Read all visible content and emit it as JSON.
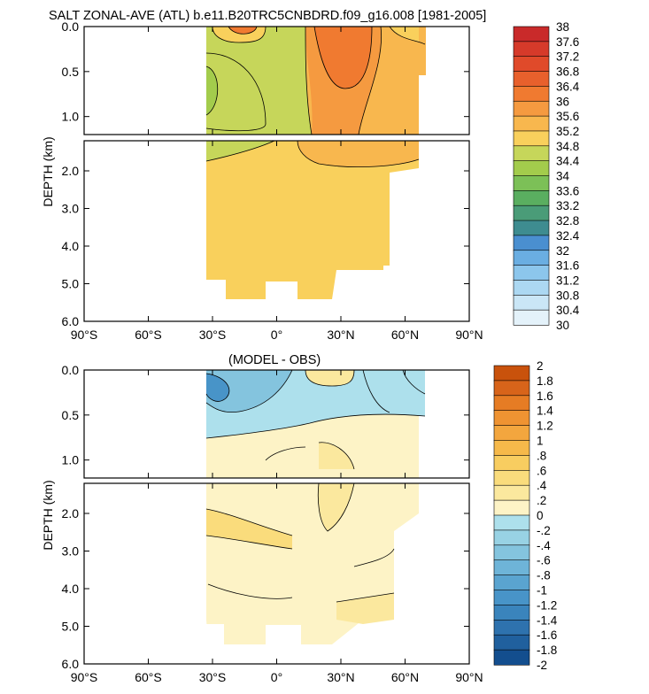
{
  "chart_data": [
    {
      "type": "heatmap",
      "title": "SALT ZONAL-AVE (ATL) b.e11.B20TRC5CNBDRD.f09_g16.008 [1981-2005]",
      "xlabel": "",
      "ylabel": "DEPTH (km)",
      "xlim": [
        -90,
        90
      ],
      "x_ticks": [
        -90,
        -60,
        -30,
        0,
        30,
        60,
        90
      ],
      "x_tick_labels": [
        "90°S",
        "60°S",
        "30°S",
        "0°",
        "30°N",
        "60°N",
        "90°N"
      ],
      "upper_ylim": [
        0.0,
        1.2
      ],
      "upper_y_tick_labels": [
        "0.0",
        "0.5",
        "1.0"
      ],
      "lower_ylim": [
        1.2,
        6.0
      ],
      "lower_y_tick_labels": [
        "2.0",
        "3.0",
        "4.0",
        "5.0",
        "6.0"
      ],
      "data_lat_range": [
        -34,
        66
      ],
      "colorbar_levels": [
        "38",
        "37.6",
        "37.2",
        "36.8",
        "36.4",
        "36",
        "35.6",
        "35.2",
        "34.8",
        "34.4",
        "34",
        "33.6",
        "33.2",
        "32.8",
        "32.4",
        "32",
        "31.6",
        "31.2",
        "30.8",
        "30.4",
        "30"
      ],
      "colorbar_colors": [
        "#c92a2a",
        "#d63a2a",
        "#e04a2a",
        "#e8602c",
        "#f07a30",
        "#f59a40",
        "#f8b74e",
        "#f9d05c",
        "#c6d65a",
        "#a3cc4c",
        "#7cc057",
        "#5aae60",
        "#4a9c78",
        "#3e8c90",
        "#4a8fd0",
        "#6aaee2",
        "#8cc6ec",
        "#acd8f2",
        "#cae6f6",
        "#e4f2fa"
      ]
    },
    {
      "type": "heatmap",
      "title": "(MODEL - OBS)",
      "xlabel": "",
      "ylabel": "DEPTH (km)",
      "xlim": [
        -90,
        90
      ],
      "x_ticks": [
        -90,
        -60,
        -30,
        0,
        30,
        60,
        90
      ],
      "x_tick_labels": [
        "90°S",
        "60°S",
        "30°S",
        "0°",
        "30°N",
        "60°N",
        "90°N"
      ],
      "upper_ylim": [
        0.0,
        1.2
      ],
      "upper_y_tick_labels": [
        "0.0",
        "0.5",
        "1.0"
      ],
      "lower_ylim": [
        1.2,
        6.0
      ],
      "lower_y_tick_labels": [
        "2.0",
        "3.0",
        "4.0",
        "5.0",
        "6.0"
      ],
      "data_lat_range": [
        -34,
        66
      ],
      "colorbar_levels": [
        "2",
        "1.8",
        "1.6",
        "1.4",
        "1.2",
        "1",
        ".8",
        ".6",
        ".4",
        ".2",
        "0",
        "-.2",
        "-.4",
        "-.6",
        "-.8",
        "-1",
        "-1.2",
        "-1.4",
        "-1.6",
        "-1.8",
        "-2"
      ],
      "colorbar_colors": [
        "#c9520c",
        "#d8641a",
        "#e67c24",
        "#ef9332",
        "#f3a63e",
        "#f6b94a",
        "#f8cd60",
        "#fadc7c",
        "#fbe89e",
        "#fdf3c6",
        "#ade0ec",
        "#98d2e4",
        "#84c4de",
        "#6eb4d8",
        "#5aa4d0",
        "#4894c8",
        "#3a84bc",
        "#2e72ae",
        "#20609e",
        "#134e8e"
      ]
    }
  ]
}
